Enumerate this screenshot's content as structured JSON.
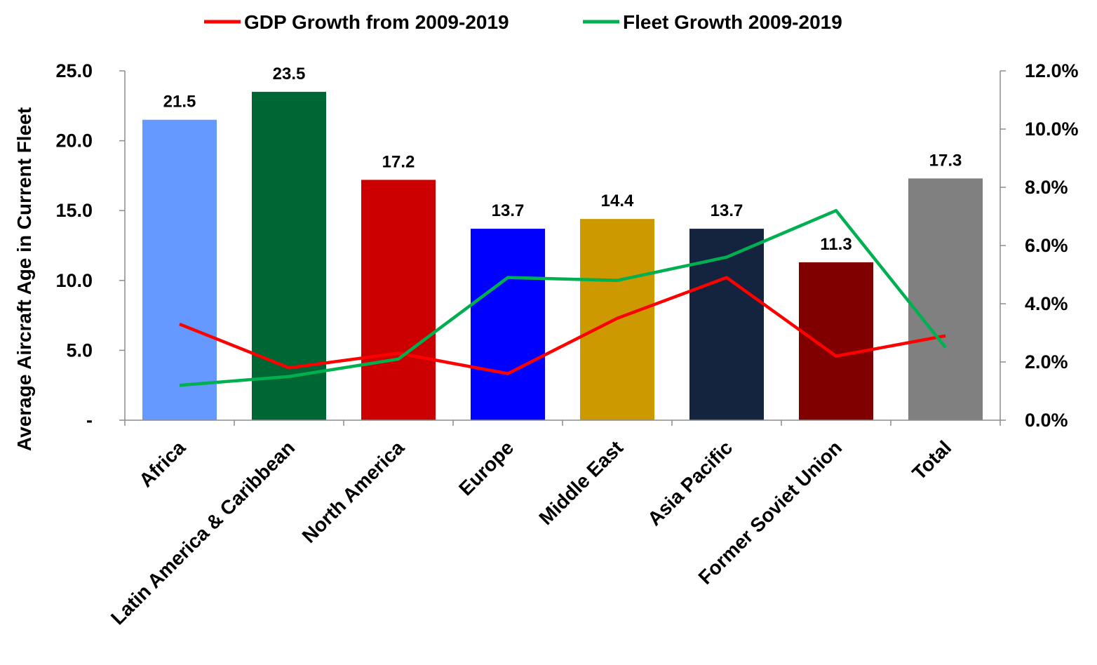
{
  "chart_data": {
    "type": "bar",
    "categories": [
      "Africa",
      "Latin America & Caribbean",
      "North America",
      "Europe",
      "Middle East",
      "Asia Pacific",
      "Former Soviet Union",
      "Total"
    ],
    "values": [
      21.5,
      23.5,
      17.2,
      13.7,
      14.4,
      13.7,
      11.3,
      17.3
    ],
    "data_labels": [
      "21.5",
      "23.5",
      "17.2",
      "13.7",
      "14.4",
      "13.7",
      "11.3",
      "17.3"
    ],
    "bar_colors": [
      "#6699FF",
      "#006633",
      "#CC0000",
      "#0000FF",
      "#CC9900",
      "#14243F",
      "#800000",
      "#808080"
    ],
    "ylabel": "Average Aircraft Age in Current Fleet",
    "ylim": [
      0,
      25
    ],
    "y_ticks": [
      "-",
      "5.0",
      "10.0",
      "15.0",
      "20.0",
      "25.0"
    ],
    "y2lim": [
      0,
      0.12
    ],
    "y2_ticks": [
      "0.0%",
      "2.0%",
      "4.0%",
      "6.0%",
      "8.0%",
      "10.0%",
      "12.0%"
    ],
    "series": [
      {
        "name": "GDP Growth from 2009-2019",
        "axis": "secondary",
        "color": "#FF0000",
        "values": [
          0.033,
          0.018,
          0.023,
          0.016,
          0.035,
          0.049,
          0.022,
          0.029
        ]
      },
      {
        "name": "Fleet Growth 2009-2019",
        "axis": "secondary",
        "color": "#00B050",
        "values": [
          0.012,
          0.015,
          0.021,
          0.049,
          0.048,
          0.056,
          0.072,
          0.025
        ]
      }
    ],
    "legend_position": "top",
    "grid": false
  }
}
